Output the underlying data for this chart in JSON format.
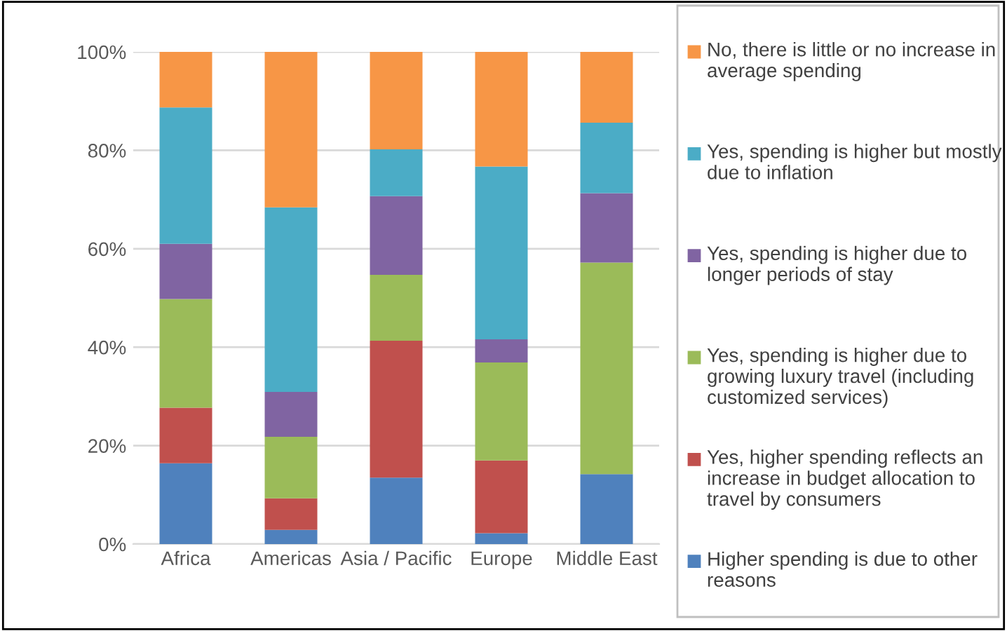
{
  "chart_data": {
    "type": "bar",
    "stacked": true,
    "categories": [
      "Africa",
      "Americas",
      "Asia / Pacific",
      "Europe",
      "Middle East"
    ],
    "series": [
      {
        "name": "Higher spending is due to other reasons",
        "color": "#4f81bd",
        "values": [
          16.4,
          2.9,
          13.5,
          2.2,
          14.2
        ]
      },
      {
        "name": "Yes, higher spending reflects an increase in budget allocation to travel by consumers",
        "color": "#c0504d",
        "values": [
          11.3,
          6.4,
          27.8,
          14.8,
          0
        ]
      },
      {
        "name": "Yes, spending is higher due to growing luxury travel (including customized services)",
        "color": "#9bbb59",
        "values": [
          22.1,
          12.5,
          13.4,
          19.9,
          43.0
        ]
      },
      {
        "name": "Yes, spending is higher due to longer periods of stay",
        "color": "#8064a2",
        "values": [
          11.2,
          9.1,
          16.0,
          4.7,
          14.1
        ]
      },
      {
        "name": "Yes, spending is higher but mostly due to inflation",
        "color": "#4bacc6",
        "values": [
          27.7,
          37.5,
          9.5,
          35.1,
          14.3
        ]
      },
      {
        "name": "No, there is little or no increase in average spending",
        "color": "#f79646",
        "values": [
          11.3,
          31.6,
          19.8,
          23.3,
          14.4
        ]
      }
    ],
    "ylim": [
      0,
      100
    ],
    "yticks": [
      {
        "value": 0,
        "label": "0%"
      },
      {
        "value": 20,
        "label": "20%"
      },
      {
        "value": 40,
        "label": "40%"
      },
      {
        "value": 60,
        "label": "60%"
      },
      {
        "value": 80,
        "label": "80%"
      },
      {
        "value": 100,
        "label": "100%"
      }
    ],
    "grid": "y",
    "legend": "right"
  }
}
